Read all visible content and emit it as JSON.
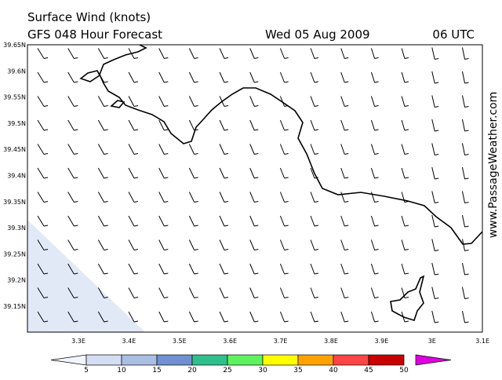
{
  "header": {
    "title": "Surface Wind (knots)",
    "model": "GFS 048 Hour Forecast",
    "date": "Wed 05 Aug 2009",
    "time": "06 UTC"
  },
  "map": {
    "lat_labels": [
      "39.65N",
      "39.6N",
      "39.55N",
      "39.5N",
      "39.45N",
      "39.4N",
      "39.35N",
      "39.3N",
      "39.25N",
      "39.2N",
      "39.15N"
    ],
    "lon_labels": [
      "3.3E",
      "3.4E",
      "3.5E",
      "3.6E",
      "3.7E",
      "3.8E",
      "3.9E",
      "3E",
      "3.1E"
    ]
  },
  "colorbar": {
    "labels": [
      "5",
      "10",
      "15",
      "20",
      "25",
      "30",
      "35",
      "40",
      "45",
      "50"
    ],
    "colors": [
      "#f2f5fb",
      "#d3def2",
      "#a9bee3",
      "#6f91d2",
      "#2fbf8c",
      "#5ef25e",
      "#ffff00",
      "#ffa200",
      "#ff4545",
      "#c80000",
      "#e000e0"
    ]
  },
  "watermark": "www.PassageWeather.com"
}
